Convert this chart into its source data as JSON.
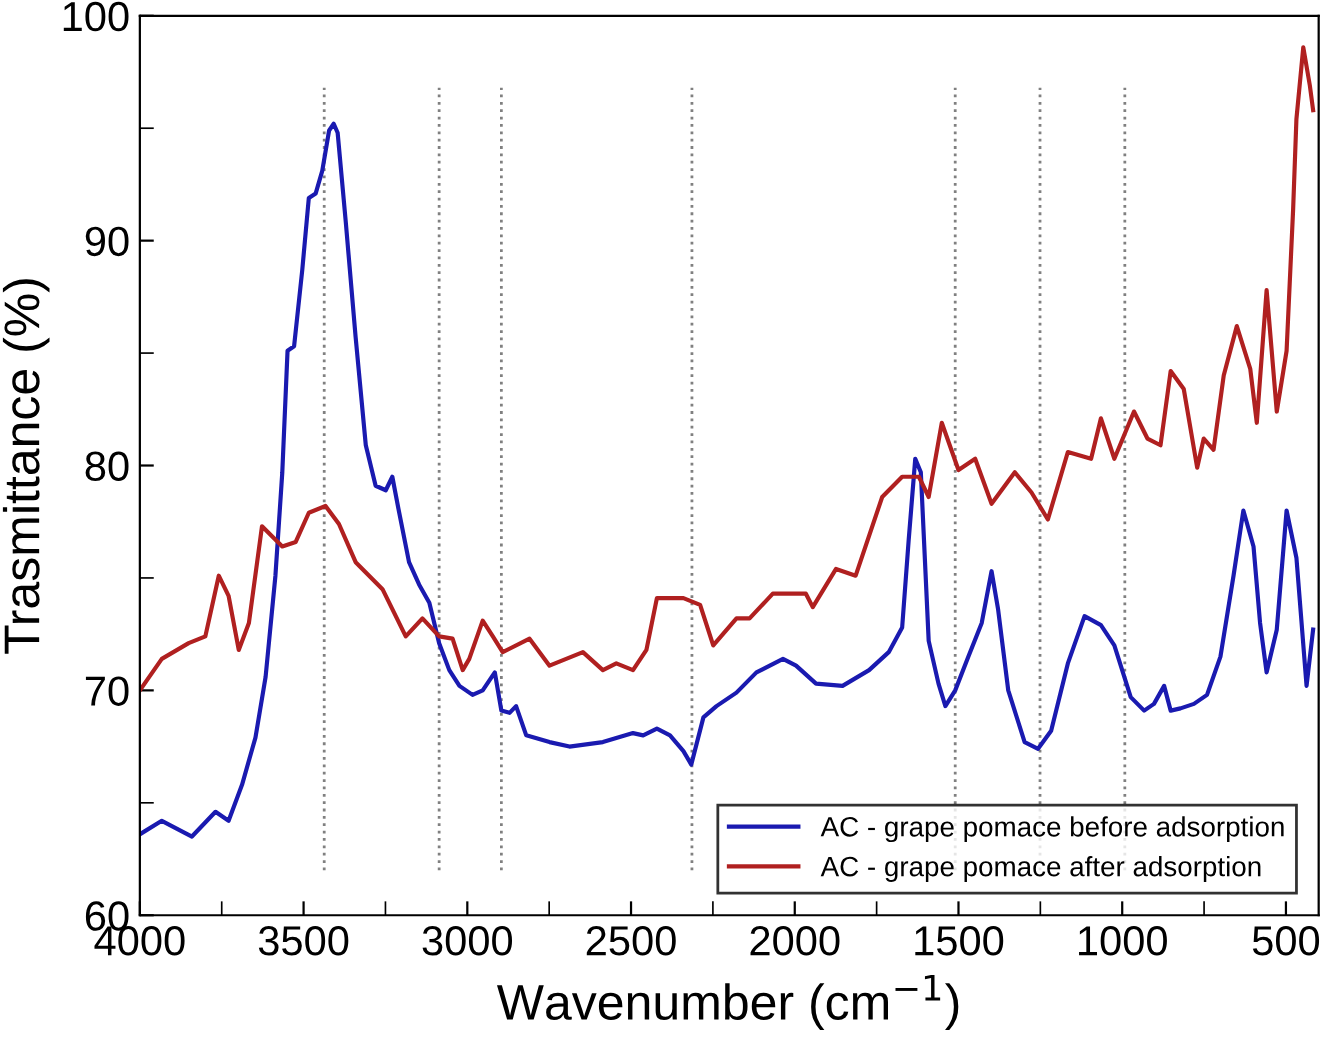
{
  "chart_data": {
    "type": "line",
    "xlabel": "Wavenumber (cm$^{−1}$)",
    "ylabel": "Trasmittance (%)",
    "xlim": [
      4000,
      400
    ],
    "xticks": [
      4000,
      3500,
      3000,
      2500,
      2000,
      1500,
      1000,
      500
    ],
    "ylim": [
      60,
      100
    ],
    "yticks": [
      60,
      70,
      80,
      90,
      100
    ],
    "grid": false,
    "legend": "bottom right",
    "line_style": "solid",
    "marker": "none",
    "ref_lines": [
      {
        "axis": "x",
        "value": 3437,
        "color": "#808080",
        "line_style": "dotted"
      },
      {
        "axis": "x",
        "value": 3086,
        "color": "#808080",
        "line_style": "dotted"
      },
      {
        "axis": "x",
        "value": 2896,
        "color": "#808080",
        "line_style": "dotted"
      },
      {
        "axis": "x",
        "value": 2314,
        "color": "#808080",
        "line_style": "dotted"
      },
      {
        "axis": "x",
        "value": 1510,
        "color": "#808080",
        "line_style": "dotted"
      },
      {
        "axis": "x",
        "value": 1251,
        "color": "#808080",
        "line_style": "dotted"
      },
      {
        "axis": "x",
        "value": 992,
        "color": "#808080",
        "line_style": "dotted"
      }
    ],
    "series": [
      {
        "name": "AC - grape pomace before adsorption",
        "color": "#1a1ab0",
        "x": [
          4000,
          3933,
          3841,
          3769,
          3729,
          3688,
          3647,
          3616,
          3586,
          3565,
          3549,
          3529,
          3504,
          3484,
          3463,
          3443,
          3422,
          3408,
          3396,
          3371,
          3341,
          3310,
          3280,
          3249,
          3229,
          3208,
          3178,
          3147,
          3116,
          3086,
          3055,
          3024,
          2984,
          2953,
          2916,
          2896,
          2871,
          2851,
          2820,
          2749,
          2688,
          2586,
          2494,
          2463,
          2421,
          2381,
          2340,
          2316,
          2279,
          2239,
          2178,
          2117,
          2036,
          1996,
          1935,
          1854,
          1773,
          1713,
          1672,
          1652,
          1632,
          1615,
          1591,
          1561,
          1540,
          1510,
          1470,
          1429,
          1399,
          1379,
          1348,
          1298,
          1257,
          1217,
          1166,
          1115,
          1065,
          1024,
          974,
          933,
          903,
          872,
          852,
          822,
          781,
          741,
          700,
          660,
          630,
          599,
          579,
          559,
          528,
          498,
          468,
          437,
          417
        ],
        "values": [
          63.6,
          64.2,
          63.5,
          64.6,
          64.2,
          65.8,
          67.9,
          70.6,
          75.1,
          79.7,
          85.1,
          85.3,
          88.7,
          91.9,
          92.1,
          93.1,
          94.9,
          95.2,
          94.8,
          90.8,
          85.7,
          80.9,
          79.1,
          78.9,
          79.5,
          77.9,
          75.7,
          74.7,
          73.9,
          72.1,
          70.9,
          70.2,
          69.8,
          70.0,
          70.8,
          69.1,
          69.0,
          69.3,
          68.0,
          67.7,
          67.5,
          67.7,
          68.1,
          68.0,
          68.3,
          68.0,
          67.3,
          66.7,
          68.8,
          69.3,
          69.9,
          70.8,
          71.4,
          71.1,
          70.3,
          70.2,
          70.9,
          71.7,
          72.8,
          76.7,
          80.3,
          79.7,
          72.2,
          70.3,
          69.3,
          70.0,
          71.5,
          73.0,
          75.3,
          73.6,
          70.0,
          67.7,
          67.4,
          68.2,
          71.2,
          73.3,
          72.9,
          72.0,
          69.7,
          69.1,
          69.4,
          70.2,
          69.1,
          69.2,
          69.4,
          69.8,
          71.5,
          75.1,
          78.0,
          76.4,
          73.0,
          70.8,
          72.7,
          78.0,
          75.9,
          70.2,
          72.7
        ]
      },
      {
        "name": "AC - grape pomace after adsorption",
        "color": "#b02020",
        "x": [
          4000,
          3933,
          3851,
          3800,
          3759,
          3729,
          3698,
          3667,
          3627,
          3565,
          3524,
          3484,
          3433,
          3392,
          3341,
          3259,
          3188,
          3137,
          3086,
          3045,
          3014,
          2994,
          2953,
          2922,
          2892,
          2810,
          2749,
          2647,
          2586,
          2545,
          2494,
          2453,
          2421,
          2340,
          2289,
          2249,
          2178,
          2138,
          2067,
          1966,
          1945,
          1874,
          1814,
          1733,
          1672,
          1621,
          1591,
          1551,
          1500,
          1449,
          1399,
          1328,
          1277,
          1227,
          1166,
          1095,
          1065,
          1024,
          964,
          923,
          883,
          852,
          812,
          771,
          751,
          721,
          690,
          650,
          609,
          589,
          559,
          528,
          498,
          478,
          468,
          447,
          427,
          417
        ],
        "values": [
          70.0,
          71.4,
          72.1,
          72.4,
          75.1,
          74.2,
          71.8,
          73.0,
          77.3,
          76.4,
          76.6,
          77.9,
          78.2,
          77.4,
          75.7,
          74.5,
          72.4,
          73.2,
          72.4,
          72.3,
          70.9,
          71.4,
          73.1,
          72.4,
          71.7,
          72.3,
          71.1,
          71.7,
          70.9,
          71.2,
          70.9,
          71.8,
          74.1,
          74.1,
          73.8,
          72.0,
          73.2,
          73.2,
          74.3,
          74.3,
          73.7,
          75.4,
          75.1,
          78.6,
          79.5,
          79.5,
          78.6,
          81.9,
          79.8,
          80.3,
          78.3,
          79.7,
          78.8,
          77.6,
          80.6,
          80.3,
          82.1,
          80.3,
          82.4,
          81.2,
          80.9,
          84.2,
          83.4,
          79.9,
          81.2,
          80.7,
          84.0,
          86.2,
          84.3,
          81.9,
          87.8,
          82.4,
          85.1,
          91.4,
          95.4,
          98.6,
          96.9,
          95.8
        ]
      }
    ]
  }
}
